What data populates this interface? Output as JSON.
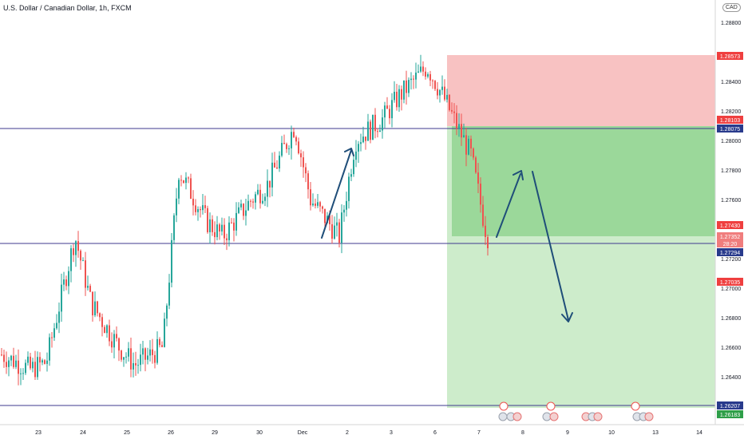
{
  "header": {
    "title": "U.S. Dollar / Canadian Dollar, 1h, FXCM",
    "currency_button": "CAD"
  },
  "colors": {
    "up": "#26a69a",
    "down": "#ef5350",
    "stop_zone": "#f7b4b4",
    "target_zone_dark": "#8fd38f",
    "target_zone_light": "#c8ebc4",
    "hline": "#3f3a8f",
    "arrow": "#1f4e79"
  },
  "chart_data": {
    "type": "candlestick",
    "title": "U.S. Dollar / Canadian Dollar, 1h, FXCM",
    "xlabel": "",
    "ylabel": "",
    "ylim": [
      1.2618,
      1.2905
    ],
    "x_ticks": [
      "23",
      "24",
      "25",
      "26",
      "29",
      "30",
      "Dec",
      "2",
      "3",
      "6",
      "7",
      "8",
      "9",
      "10",
      "13",
      "14"
    ],
    "y_ticks": [
      "1.28800",
      "1.28400",
      "1.28200",
      "1.28000",
      "1.27800",
      "1.27600",
      "1.27200",
      "1.27000",
      "1.26800",
      "1.26600",
      "1.26400"
    ],
    "price_path": [
      [
        "23",
        1.2645
      ],
      [
        "23",
        1.265
      ],
      [
        "24",
        1.2735
      ],
      [
        "24",
        1.269
      ],
      [
        "25",
        1.266
      ],
      [
        "25",
        1.2648
      ],
      [
        "26",
        1.266
      ],
      [
        "26",
        1.278
      ],
      [
        "29",
        1.2745
      ],
      [
        "29",
        1.2735
      ],
      [
        "30",
        1.276
      ],
      [
        "30",
        1.277
      ],
      [
        "Dec",
        1.281
      ],
      [
        "Dec",
        1.276
      ],
      [
        "2",
        1.2735
      ],
      [
        "2",
        1.28
      ],
      [
        "3",
        1.2815
      ],
      [
        "3",
        1.283
      ],
      [
        "6",
        1.285
      ],
      [
        "6",
        1.283
      ],
      [
        "7",
        1.279
      ],
      [
        "7",
        1.2735
      ]
    ],
    "horizontal_lines": [
      1.28075,
      1.27294,
      1.26207
    ],
    "position": {
      "type": "short",
      "entry": 1.2743,
      "stop": 1.28573,
      "target": 1.26207
    },
    "price_labels": [
      {
        "text": "1.28573",
        "kind": "red"
      },
      {
        "text": "1.28103",
        "kind": "red"
      },
      {
        "text": "1.28075",
        "kind": "navy"
      },
      {
        "text": "1.27430",
        "kind": "red"
      },
      {
        "text": "1.27352",
        "kind": "pink"
      },
      {
        "text": "28:20",
        "kind": "pink"
      },
      {
        "text": "1.27294",
        "kind": "navy"
      },
      {
        "text": "1.27035",
        "kind": "red"
      },
      {
        "text": "1.26207",
        "kind": "navy"
      },
      {
        "text": "1.26183",
        "kind": "green"
      }
    ]
  }
}
